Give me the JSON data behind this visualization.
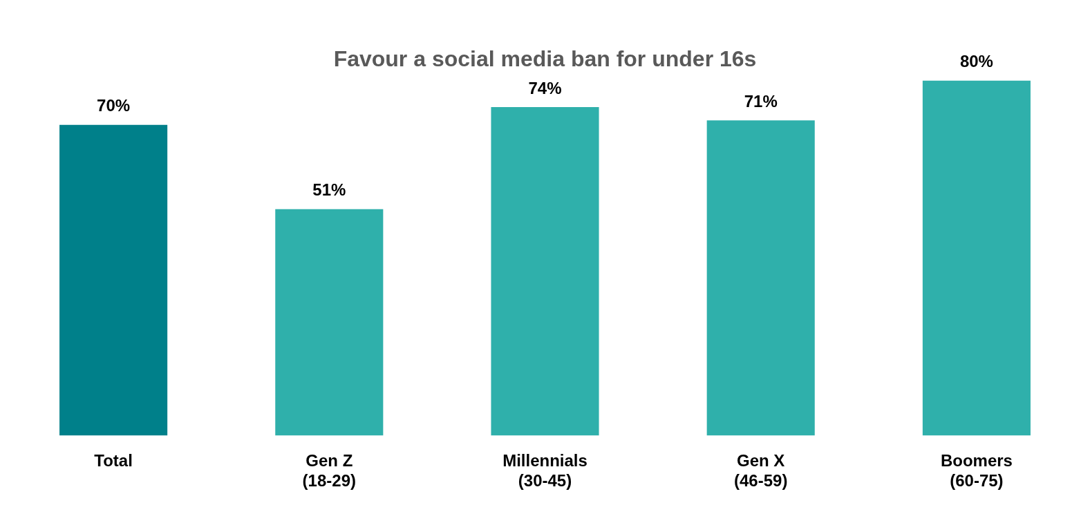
{
  "chart_data": {
    "type": "bar",
    "title": "Favour a social media ban for under 16s",
    "categories": [
      "Total",
      "Gen Z\n(18-29)",
      "Millennials\n(30-45)",
      "Gen X\n(46-59)",
      "Boomers\n(60-75)"
    ],
    "values": [
      70,
      51,
      74,
      71,
      80
    ],
    "colors": [
      "#00808a",
      "#2fb0ab",
      "#2fb0ab",
      "#2fb0ab",
      "#2fb0ab"
    ],
    "value_labels": [
      "70%",
      "51%",
      "74%",
      "71%",
      "80%"
    ],
    "grid": false,
    "legend": false
  }
}
